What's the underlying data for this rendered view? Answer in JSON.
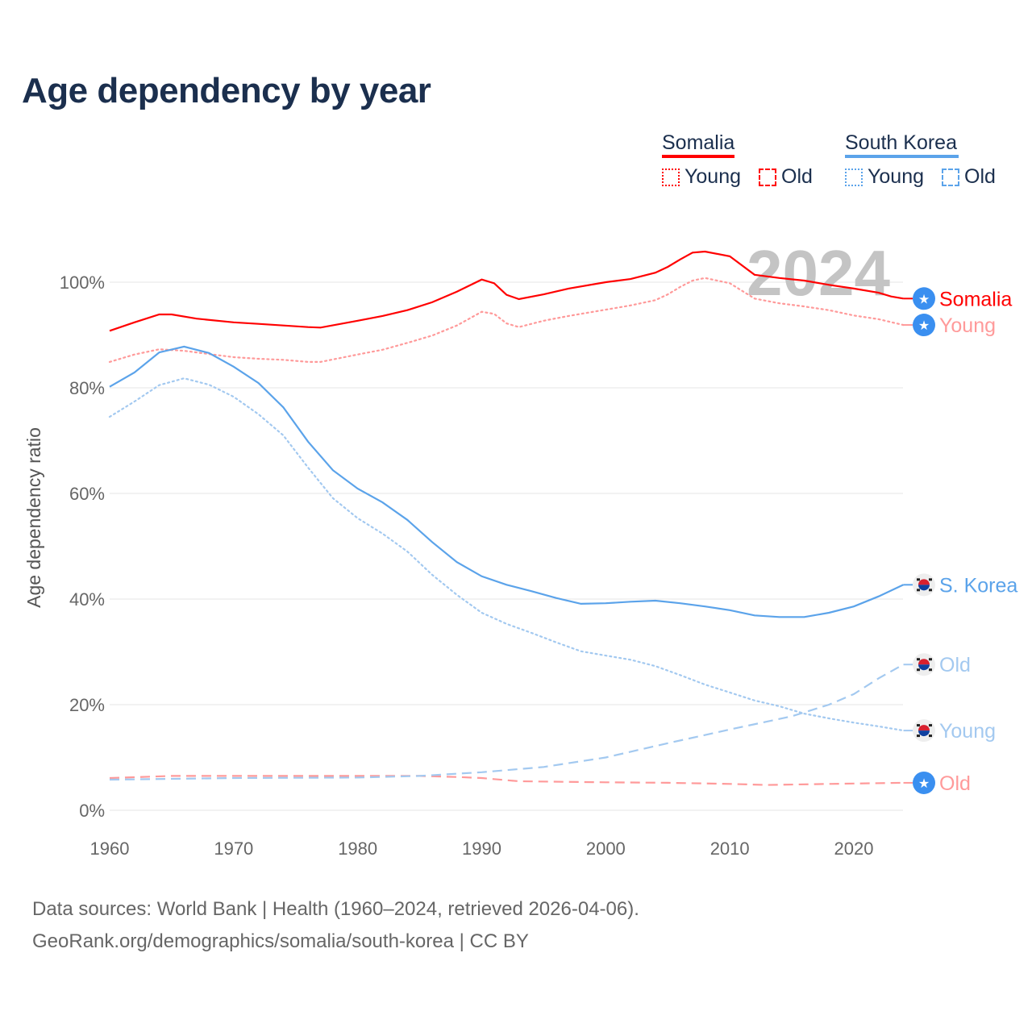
{
  "title": "Age dependency by year",
  "legend": {
    "groups": [
      {
        "country": "Somalia",
        "color": "#ff0000",
        "items": [
          "Young",
          "Old"
        ]
      },
      {
        "country": "South Korea",
        "color": "#5ba3ea",
        "items": [
          "Young",
          "Old"
        ]
      }
    ]
  },
  "footer": {
    "line1": "Data sources: World Bank | Health (1960–2024, retrieved 2026-04-06).",
    "line2": "GeoRank.org/demographics/somalia/south-korea | CC BY"
  },
  "chart_data": {
    "type": "line",
    "title": "Age dependency by year",
    "ylabel": "Age dependency ratio",
    "xlabel": "",
    "year_watermark": "2024",
    "xlim": [
      1960,
      2024
    ],
    "ylim": [
      0,
      100
    ],
    "x_ticks": [
      "1960",
      "1970",
      "1980",
      "1990",
      "2000",
      "2010",
      "2020"
    ],
    "y_ticks": [
      "0%",
      "20%",
      "40%",
      "60%",
      "80%",
      "100%"
    ],
    "grid": true,
    "series": [
      {
        "name": "Somalia",
        "label": "Somalia",
        "color": "#ff0000",
        "style": "solid",
        "flag": "somalia",
        "points": [
          [
            1960,
            90.8
          ],
          [
            1962,
            92.4
          ],
          [
            1964,
            93.9
          ],
          [
            1965,
            93.9
          ],
          [
            1967,
            93.1
          ],
          [
            1970,
            92.4
          ],
          [
            1972,
            92.1
          ],
          [
            1974,
            91.8
          ],
          [
            1976,
            91.5
          ],
          [
            1977,
            91.4
          ],
          [
            1980,
            92.7
          ],
          [
            1982,
            93.6
          ],
          [
            1984,
            94.7
          ],
          [
            1986,
            96.2
          ],
          [
            1988,
            98.2
          ],
          [
            1990,
            100.5
          ],
          [
            1991,
            99.8
          ],
          [
            1992,
            97.6
          ],
          [
            1993,
            96.8
          ],
          [
            1995,
            97.7
          ],
          [
            1997,
            98.8
          ],
          [
            2000,
            100
          ],
          [
            2002,
            100.6
          ],
          [
            2004,
            101.8
          ],
          [
            2005,
            102.9
          ],
          [
            2006,
            104.3
          ],
          [
            2007,
            105.6
          ],
          [
            2008,
            105.8
          ],
          [
            2010,
            104.9
          ],
          [
            2012,
            101.4
          ],
          [
            2014,
            100.8
          ],
          [
            2016,
            100.3
          ],
          [
            2018,
            99.5
          ],
          [
            2020,
            98.8
          ],
          [
            2022,
            98.0
          ],
          [
            2023,
            97.3
          ],
          [
            2024,
            96.9
          ]
        ]
      },
      {
        "name": "Somalia Young",
        "label": "Young",
        "color": "#ff9a9a",
        "style": "dotted",
        "flag": "somalia",
        "points": [
          [
            1960,
            84.9
          ],
          [
            1962,
            86.3
          ],
          [
            1964,
            87.3
          ],
          [
            1966,
            87.0
          ],
          [
            1968,
            86.4
          ],
          [
            1970,
            85.8
          ],
          [
            1972,
            85.5
          ],
          [
            1974,
            85.3
          ],
          [
            1976,
            84.9
          ],
          [
            1977,
            84.9
          ],
          [
            1980,
            86.3
          ],
          [
            1982,
            87.2
          ],
          [
            1984,
            88.5
          ],
          [
            1986,
            89.9
          ],
          [
            1988,
            91.8
          ],
          [
            1990,
            94.4
          ],
          [
            1991,
            94.0
          ],
          [
            1992,
            92.2
          ],
          [
            1993,
            91.5
          ],
          [
            1995,
            92.7
          ],
          [
            1997,
            93.6
          ],
          [
            2000,
            94.8
          ],
          [
            2002,
            95.6
          ],
          [
            2004,
            96.6
          ],
          [
            2005,
            97.7
          ],
          [
            2006,
            99.1
          ],
          [
            2007,
            100.3
          ],
          [
            2008,
            100.8
          ],
          [
            2010,
            99.8
          ],
          [
            2012,
            96.9
          ],
          [
            2014,
            96.0
          ],
          [
            2016,
            95.4
          ],
          [
            2018,
            94.7
          ],
          [
            2020,
            93.7
          ],
          [
            2022,
            93.0
          ],
          [
            2024,
            91.9
          ]
        ]
      },
      {
        "name": "Somalia Old",
        "label": "Old",
        "color": "#ff9a9a",
        "style": "dashed",
        "flag": "somalia",
        "points": [
          [
            1960,
            6.1
          ],
          [
            1965,
            6.5
          ],
          [
            1975,
            6.5
          ],
          [
            1985,
            6.5
          ],
          [
            1988,
            6.3
          ],
          [
            1990,
            6.1
          ],
          [
            1993,
            5.5
          ],
          [
            2000,
            5.3
          ],
          [
            2005,
            5.2
          ],
          [
            2010,
            5.0
          ],
          [
            2013,
            4.8
          ],
          [
            2018,
            5.0
          ],
          [
            2024,
            5.2
          ]
        ]
      },
      {
        "name": "South Korea",
        "label": "S. Korea",
        "color": "#5ba3ea",
        "style": "solid",
        "flag": "korea",
        "points": [
          [
            1960,
            80.2
          ],
          [
            1962,
            82.9
          ],
          [
            1964,
            86.7
          ],
          [
            1966,
            87.8
          ],
          [
            1968,
            86.6
          ],
          [
            1970,
            84.0
          ],
          [
            1972,
            80.9
          ],
          [
            1974,
            76.3
          ],
          [
            1976,
            69.8
          ],
          [
            1978,
            64.4
          ],
          [
            1980,
            60.9
          ],
          [
            1982,
            58.3
          ],
          [
            1984,
            55.0
          ],
          [
            1986,
            50.8
          ],
          [
            1988,
            47.0
          ],
          [
            1990,
            44.3
          ],
          [
            1992,
            42.7
          ],
          [
            1994,
            41.5
          ],
          [
            1996,
            40.2
          ],
          [
            1998,
            39.1
          ],
          [
            2000,
            39.2
          ],
          [
            2002,
            39.5
          ],
          [
            2004,
            39.7
          ],
          [
            2006,
            39.2
          ],
          [
            2008,
            38.6
          ],
          [
            2010,
            37.9
          ],
          [
            2012,
            36.9
          ],
          [
            2014,
            36.6
          ],
          [
            2016,
            36.6
          ],
          [
            2018,
            37.4
          ],
          [
            2020,
            38.6
          ],
          [
            2022,
            40.5
          ],
          [
            2024,
            42.7
          ]
        ]
      },
      {
        "name": "South Korea Old",
        "label": "Old",
        "color": "#a3c9f0",
        "style": "dashed",
        "flag": "korea",
        "points": [
          [
            1960,
            5.8
          ],
          [
            1970,
            6.1
          ],
          [
            1980,
            6.2
          ],
          [
            1985,
            6.5
          ],
          [
            1990,
            7.2
          ],
          [
            1995,
            8.2
          ],
          [
            2000,
            10.0
          ],
          [
            2005,
            12.7
          ],
          [
            2010,
            15.3
          ],
          [
            2015,
            17.8
          ],
          [
            2018,
            20.0
          ],
          [
            2020,
            22.0
          ],
          [
            2022,
            25.0
          ],
          [
            2024,
            27.6
          ]
        ]
      },
      {
        "name": "South Korea Young",
        "label": "Young",
        "color": "#a3c9f0",
        "style": "dotted",
        "flag": "korea",
        "points": [
          [
            1960,
            74.5
          ],
          [
            1962,
            77.4
          ],
          [
            1964,
            80.5
          ],
          [
            1966,
            81.8
          ],
          [
            1968,
            80.6
          ],
          [
            1970,
            78.3
          ],
          [
            1972,
            75.0
          ],
          [
            1974,
            71.0
          ],
          [
            1976,
            64.9
          ],
          [
            1978,
            59.1
          ],
          [
            1980,
            55.3
          ],
          [
            1982,
            52.4
          ],
          [
            1984,
            49.0
          ],
          [
            1986,
            44.6
          ],
          [
            1988,
            40.8
          ],
          [
            1990,
            37.4
          ],
          [
            1992,
            35.3
          ],
          [
            1994,
            33.6
          ],
          [
            1996,
            31.8
          ],
          [
            1998,
            30.1
          ],
          [
            2000,
            29.3
          ],
          [
            2002,
            28.5
          ],
          [
            2004,
            27.3
          ],
          [
            2006,
            25.6
          ],
          [
            2008,
            23.8
          ],
          [
            2010,
            22.3
          ],
          [
            2012,
            20.8
          ],
          [
            2014,
            19.7
          ],
          [
            2016,
            18.3
          ],
          [
            2018,
            17.4
          ],
          [
            2020,
            16.6
          ],
          [
            2022,
            15.9
          ],
          [
            2024,
            15.1
          ]
        ]
      }
    ]
  }
}
